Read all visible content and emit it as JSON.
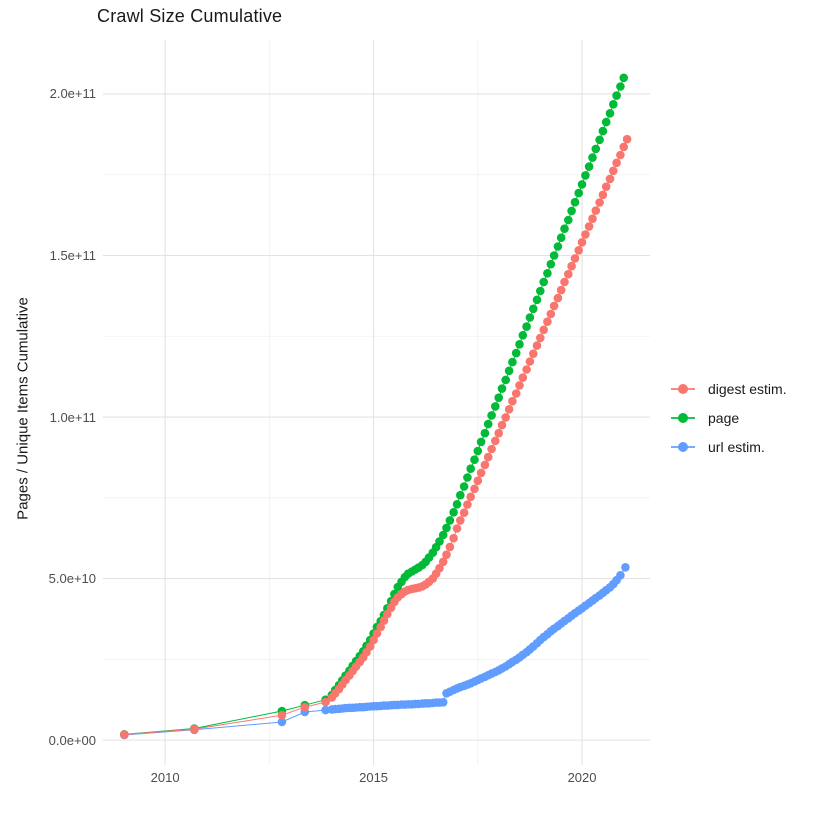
{
  "title": "Crawl Size Cumulative",
  "chart_data": {
    "type": "scatter",
    "title": "Crawl Size Cumulative",
    "xlabel": "",
    "ylabel": "Pages / Unique Items Cumulative",
    "legend_position": "right",
    "grid": true,
    "background": "#ffffff",
    "grid_major_color": "#e3e3e3",
    "grid_minor_color": "#f0f0f0",
    "tick_label_color": "#4d4d4d",
    "value_unit": 1000000000.0,
    "xlim": [
      2008.51,
      2021.63
    ],
    "ylim_billions": [
      -7.7,
      216.7
    ],
    "x_ticks": [
      {
        "v": 2010,
        "label": "2010"
      },
      {
        "v": 2015,
        "label": "2015"
      },
      {
        "v": 2020,
        "label": "2020"
      }
    ],
    "x_minor_ticks": [
      2012.5,
      2017.5
    ],
    "y_ticks": [
      {
        "v": 0,
        "label": "0.0e+00"
      },
      {
        "v": 50,
        "label": "5.0e+10"
      },
      {
        "v": 100,
        "label": "1.0e+11"
      },
      {
        "v": 150,
        "label": "1.5e+11"
      },
      {
        "v": 200,
        "label": "2.0e+11"
      }
    ],
    "y_minor_ticks": [
      25,
      75,
      125,
      175
    ],
    "series": [
      {
        "name": "digest estim.",
        "color": "#F8766D",
        "points": [
          [
            2009.02,
            1.7
          ],
          [
            2010.7,
            3.4
          ],
          [
            2012.8,
            7.7
          ],
          [
            2013.35,
            10.2
          ],
          [
            2013.85,
            11.8
          ],
          [
            2014.0,
            13.2
          ],
          [
            2014.08,
            14.5
          ],
          [
            2014.17,
            15.8
          ],
          [
            2014.25,
            17.2
          ],
          [
            2014.33,
            18.6
          ],
          [
            2014.42,
            20.0
          ],
          [
            2014.5,
            21.4
          ],
          [
            2014.58,
            22.8
          ],
          [
            2014.67,
            24.2
          ],
          [
            2014.75,
            25.6
          ],
          [
            2014.83,
            27.2
          ],
          [
            2014.92,
            29.0
          ],
          [
            2015.0,
            31.0
          ],
          [
            2015.08,
            33.0
          ],
          [
            2015.17,
            35.0
          ],
          [
            2015.25,
            37.0
          ],
          [
            2015.33,
            39.0
          ],
          [
            2015.42,
            41.0
          ],
          [
            2015.5,
            42.8
          ],
          [
            2015.58,
            44.2
          ],
          [
            2015.67,
            45.2
          ],
          [
            2015.75,
            46.0
          ],
          [
            2015.83,
            46.5
          ],
          [
            2015.92,
            46.8
          ],
          [
            2016.0,
            47.0
          ],
          [
            2016.08,
            47.2
          ],
          [
            2016.17,
            47.6
          ],
          [
            2016.25,
            48.2
          ],
          [
            2016.33,
            49.0
          ],
          [
            2016.42,
            50.0
          ],
          [
            2016.5,
            51.5
          ],
          [
            2016.58,
            53.2
          ],
          [
            2016.67,
            55.2
          ],
          [
            2016.75,
            57.4
          ],
          [
            2016.83,
            59.8
          ],
          [
            2016.92,
            62.5
          ],
          [
            2017.0,
            65.5
          ],
          [
            2017.08,
            68.0
          ],
          [
            2017.17,
            70.4
          ],
          [
            2017.25,
            72.9
          ],
          [
            2017.33,
            75.3
          ],
          [
            2017.42,
            77.8
          ],
          [
            2017.5,
            80.3
          ],
          [
            2017.58,
            82.7
          ],
          [
            2017.67,
            85.2
          ],
          [
            2017.75,
            87.6
          ],
          [
            2017.83,
            90.1
          ],
          [
            2017.92,
            92.6
          ],
          [
            2018.0,
            95.0
          ],
          [
            2018.08,
            97.5
          ],
          [
            2018.17,
            99.9
          ],
          [
            2018.25,
            102.4
          ],
          [
            2018.33,
            104.9
          ],
          [
            2018.42,
            107.3
          ],
          [
            2018.5,
            109.8
          ],
          [
            2018.58,
            112.2
          ],
          [
            2018.67,
            114.7
          ],
          [
            2018.75,
            117.2
          ],
          [
            2018.83,
            119.6
          ],
          [
            2018.92,
            122.1
          ],
          [
            2019.0,
            124.5
          ],
          [
            2019.08,
            127.0
          ],
          [
            2019.17,
            129.5
          ],
          [
            2019.25,
            131.9
          ],
          [
            2019.33,
            134.4
          ],
          [
            2019.42,
            136.8
          ],
          [
            2019.5,
            139.3
          ],
          [
            2019.58,
            141.8
          ],
          [
            2019.67,
            144.2
          ],
          [
            2019.75,
            146.7
          ],
          [
            2019.83,
            149.1
          ],
          [
            2019.92,
            151.6
          ],
          [
            2020.0,
            154.1
          ],
          [
            2020.08,
            156.5
          ],
          [
            2020.17,
            159.0
          ],
          [
            2020.25,
            161.4
          ],
          [
            2020.33,
            163.9
          ],
          [
            2020.42,
            166.4
          ],
          [
            2020.5,
            168.8
          ],
          [
            2020.58,
            171.3
          ],
          [
            2020.67,
            173.7
          ],
          [
            2020.75,
            176.2
          ],
          [
            2020.83,
            178.7
          ],
          [
            2020.92,
            181.1
          ],
          [
            2021.0,
            183.6
          ],
          [
            2021.08,
            186.0
          ]
        ]
      },
      {
        "name": "page",
        "color": "#00BA38",
        "points": [
          [
            2009.02,
            1.8
          ],
          [
            2010.7,
            3.6
          ],
          [
            2012.8,
            9.0
          ],
          [
            2013.35,
            10.8
          ],
          [
            2013.85,
            12.5
          ],
          [
            2014.0,
            14.0
          ],
          [
            2014.08,
            15.5
          ],
          [
            2014.17,
            17.0
          ],
          [
            2014.25,
            18.5
          ],
          [
            2014.33,
            20.0
          ],
          [
            2014.42,
            21.5
          ],
          [
            2014.5,
            23.0
          ],
          [
            2014.58,
            24.5
          ],
          [
            2014.67,
            26.0
          ],
          [
            2014.75,
            27.5
          ],
          [
            2014.83,
            29.2
          ],
          [
            2014.92,
            31.0
          ],
          [
            2015.0,
            33.0
          ],
          [
            2015.08,
            35.0
          ],
          [
            2015.17,
            36.8
          ],
          [
            2015.25,
            38.7
          ],
          [
            2015.33,
            40.8
          ],
          [
            2015.42,
            43.0
          ],
          [
            2015.5,
            45.2
          ],
          [
            2015.58,
            47.4
          ],
          [
            2015.67,
            49.0
          ],
          [
            2015.75,
            50.5
          ],
          [
            2015.83,
            51.5
          ],
          [
            2015.92,
            52.2
          ],
          [
            2016.0,
            52.8
          ],
          [
            2016.08,
            53.4
          ],
          [
            2016.17,
            54.2
          ],
          [
            2016.25,
            55.2
          ],
          [
            2016.33,
            56.5
          ],
          [
            2016.42,
            58.0
          ],
          [
            2016.5,
            59.7
          ],
          [
            2016.58,
            61.5
          ],
          [
            2016.67,
            63.5
          ],
          [
            2016.75,
            65.7
          ],
          [
            2016.83,
            68.0
          ],
          [
            2016.92,
            70.5
          ],
          [
            2017.0,
            73.0
          ],
          [
            2017.08,
            75.8
          ],
          [
            2017.17,
            78.5
          ],
          [
            2017.25,
            81.3
          ],
          [
            2017.33,
            84.0
          ],
          [
            2017.42,
            86.8
          ],
          [
            2017.5,
            89.5
          ],
          [
            2017.58,
            92.3
          ],
          [
            2017.67,
            95.0
          ],
          [
            2017.75,
            97.8
          ],
          [
            2017.83,
            100.5
          ],
          [
            2017.92,
            103.3
          ],
          [
            2018.0,
            106.0
          ],
          [
            2018.08,
            108.8
          ],
          [
            2018.17,
            111.5
          ],
          [
            2018.25,
            114.3
          ],
          [
            2018.33,
            117.0
          ],
          [
            2018.42,
            119.8
          ],
          [
            2018.5,
            122.5
          ],
          [
            2018.58,
            125.3
          ],
          [
            2018.67,
            128.0
          ],
          [
            2018.75,
            130.8
          ],
          [
            2018.83,
            133.5
          ],
          [
            2018.92,
            136.3
          ],
          [
            2019.0,
            139.0
          ],
          [
            2019.08,
            141.8
          ],
          [
            2019.17,
            144.5
          ],
          [
            2019.25,
            147.3
          ],
          [
            2019.33,
            150.0
          ],
          [
            2019.42,
            152.8
          ],
          [
            2019.5,
            155.5
          ],
          [
            2019.58,
            158.3
          ],
          [
            2019.67,
            161.0
          ],
          [
            2019.75,
            163.8
          ],
          [
            2019.83,
            166.5
          ],
          [
            2019.92,
            169.3
          ],
          [
            2020.0,
            172.0
          ],
          [
            2020.08,
            174.8
          ],
          [
            2020.17,
            177.5
          ],
          [
            2020.25,
            180.3
          ],
          [
            2020.33,
            183.0
          ],
          [
            2020.42,
            185.8
          ],
          [
            2020.5,
            188.5
          ],
          [
            2020.58,
            191.3
          ],
          [
            2020.67,
            194.0
          ],
          [
            2020.75,
            196.8
          ],
          [
            2020.83,
            199.5
          ],
          [
            2020.92,
            202.3
          ],
          [
            2021.0,
            205.0
          ]
        ]
      },
      {
        "name": "url estim.",
        "color": "#619CFF",
        "points": [
          [
            2009.02,
            1.6
          ],
          [
            2010.7,
            3.2
          ],
          [
            2012.8,
            5.6
          ],
          [
            2013.35,
            8.7
          ],
          [
            2013.85,
            9.3
          ],
          [
            2014.0,
            9.5
          ],
          [
            2014.08,
            9.6
          ],
          [
            2014.17,
            9.7
          ],
          [
            2014.25,
            9.8
          ],
          [
            2014.33,
            9.9
          ],
          [
            2014.42,
            10.0
          ],
          [
            2014.5,
            10.0
          ],
          [
            2014.58,
            10.1
          ],
          [
            2014.67,
            10.2
          ],
          [
            2014.75,
            10.2
          ],
          [
            2014.83,
            10.3
          ],
          [
            2014.92,
            10.4
          ],
          [
            2015.0,
            10.5
          ],
          [
            2015.08,
            10.5
          ],
          [
            2015.17,
            10.6
          ],
          [
            2015.25,
            10.7
          ],
          [
            2015.33,
            10.7
          ],
          [
            2015.42,
            10.8
          ],
          [
            2015.5,
            10.9
          ],
          [
            2015.58,
            10.9
          ],
          [
            2015.67,
            11.0
          ],
          [
            2015.75,
            11.0
          ],
          [
            2015.83,
            11.1
          ],
          [
            2015.92,
            11.1
          ],
          [
            2016.0,
            11.2
          ],
          [
            2016.08,
            11.2
          ],
          [
            2016.17,
            11.3
          ],
          [
            2016.25,
            11.4
          ],
          [
            2016.33,
            11.4
          ],
          [
            2016.42,
            11.5
          ],
          [
            2016.5,
            11.6
          ],
          [
            2016.58,
            11.6
          ],
          [
            2016.67,
            11.7
          ],
          [
            2016.75,
            14.5
          ],
          [
            2016.83,
            15.0
          ],
          [
            2016.92,
            15.5
          ],
          [
            2017.0,
            16.0
          ],
          [
            2017.08,
            16.4
          ],
          [
            2017.17,
            16.8
          ],
          [
            2017.25,
            17.2
          ],
          [
            2017.33,
            17.6
          ],
          [
            2017.42,
            18.1
          ],
          [
            2017.5,
            18.6
          ],
          [
            2017.58,
            19.1
          ],
          [
            2017.67,
            19.6
          ],
          [
            2017.75,
            20.1
          ],
          [
            2017.83,
            20.6
          ],
          [
            2017.92,
            21.1
          ],
          [
            2018.0,
            21.6
          ],
          [
            2018.08,
            22.2
          ],
          [
            2018.17,
            22.8
          ],
          [
            2018.25,
            23.5
          ],
          [
            2018.33,
            24.2
          ],
          [
            2018.42,
            24.9
          ],
          [
            2018.5,
            25.6
          ],
          [
            2018.58,
            26.4
          ],
          [
            2018.67,
            27.2
          ],
          [
            2018.75,
            28.1
          ],
          [
            2018.83,
            29.0
          ],
          [
            2018.92,
            30.0
          ],
          [
            2019.0,
            31.0
          ],
          [
            2019.08,
            31.9
          ],
          [
            2019.17,
            32.8
          ],
          [
            2019.25,
            33.7
          ],
          [
            2019.33,
            34.5
          ],
          [
            2019.42,
            35.3
          ],
          [
            2019.5,
            36.1
          ],
          [
            2019.58,
            36.9
          ],
          [
            2019.67,
            37.7
          ],
          [
            2019.75,
            38.5
          ],
          [
            2019.83,
            39.3
          ],
          [
            2019.92,
            40.1
          ],
          [
            2020.0,
            40.8
          ],
          [
            2020.08,
            41.6
          ],
          [
            2020.17,
            42.4
          ],
          [
            2020.25,
            43.2
          ],
          [
            2020.33,
            44.0
          ],
          [
            2020.42,
            44.8
          ],
          [
            2020.5,
            45.6
          ],
          [
            2020.58,
            46.4
          ],
          [
            2020.67,
            47.3
          ],
          [
            2020.75,
            48.3
          ],
          [
            2020.83,
            49.5
          ],
          [
            2020.92,
            51.0
          ],
          [
            2021.04,
            53.5
          ]
        ]
      }
    ]
  }
}
